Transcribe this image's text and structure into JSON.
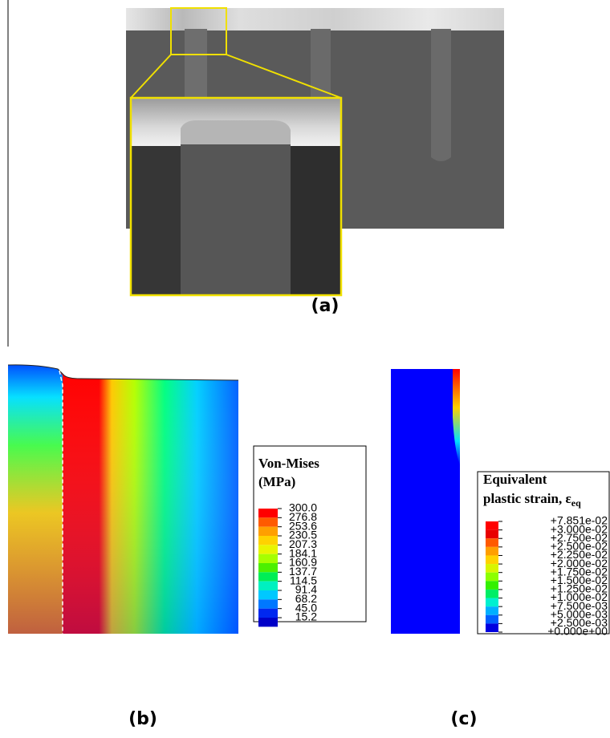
{
  "panel_labels": [
    "(a)",
    "(b)",
    "(c)"
  ],
  "legends": [
    {
      "title_lines": [
        "Von-Mises",
        "(MPa)"
      ],
      "labels": [
        "300.0",
        "276.8",
        "253.6",
        "230.5",
        "207.3",
        "184.1",
        "160.9",
        "137.7",
        "114.5",
        "91.4",
        "68.2",
        "45.0",
        "15.2"
      ],
      "swatch_colors": [
        "#ff0000",
        "#ff5a00",
        "#ff9f00",
        "#ffd200",
        "#e8f500",
        "#a6ff00",
        "#4cf000",
        "#00ee55",
        "#00f0c0",
        "#00c8ff",
        "#0078ff",
        "#0028f0",
        "#0000c8"
      ]
    },
    {
      "title_lines": [
        "Equivalent",
        "plastic strain, ε"
      ],
      "title_subscript": "eq",
      "labels": [
        "+7.851e-02",
        "+3.000e-02",
        "+2.750e-02",
        "+2.500e-02",
        "+2.250e-02",
        "+2.000e-02",
        "+1.750e-02",
        "+1.500e-02",
        "+1.250e-02",
        "+1.000e-02",
        "+7.500e-03",
        "+5.000e-03",
        "+2.500e-03",
        "+0.000e+00"
      ],
      "swatch_colors": [
        "#ff0000",
        "#e80000",
        "#ff5a00",
        "#ff9f00",
        "#ffd200",
        "#d8f500",
        "#8cff00",
        "#33f000",
        "#00ee66",
        "#00f0d0",
        "#00b0ff",
        "#0060ff",
        "#0000e0"
      ]
    }
  ]
}
